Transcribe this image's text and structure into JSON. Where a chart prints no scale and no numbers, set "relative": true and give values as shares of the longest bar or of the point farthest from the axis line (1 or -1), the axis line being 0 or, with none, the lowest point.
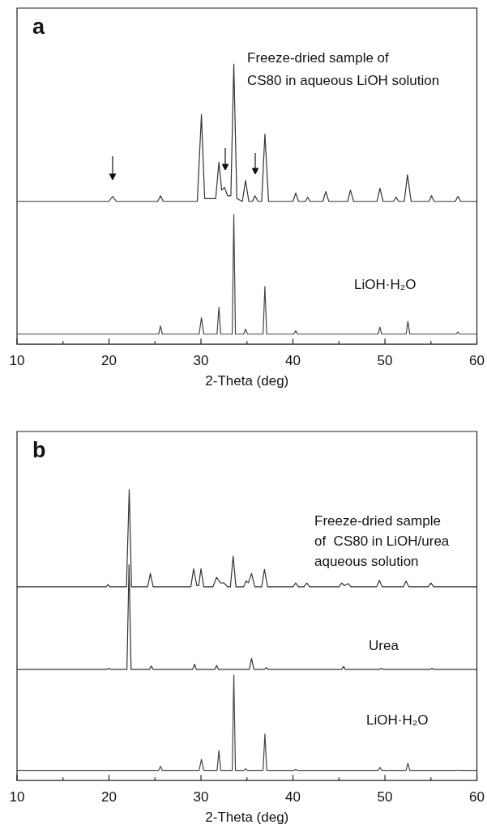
{
  "chart_data": [
    {
      "type": "line",
      "title": "a",
      "xlabel": "2-Theta (deg)",
      "xlim": [
        10,
        60
      ],
      "xticks": [
        10,
        {
          "value": 15,
          "label": null
        },
        20,
        {
          "value": 25,
          "label": null
        },
        30,
        {
          "value": 35,
          "label": null
        },
        40,
        {
          "value": 45,
          "label": null
        },
        50,
        {
          "value": 55,
          "label": null
        },
        60
      ],
      "relative": true,
      "marker": "none",
      "line_style": "solid",
      "legend": false,
      "series": [
        {
          "name": "Freeze-dried sample of\nCS80 in aqueous LiOH solution",
          "color": "#333333",
          "x": [
            10,
            20.0,
            20.4,
            20.8,
            25.3,
            25.6,
            25.9,
            29.6,
            30.05,
            30.4,
            31.6,
            31.95,
            32.25,
            32.56,
            32.9,
            33.25,
            33.57,
            33.9,
            34.5,
            34.85,
            35.2,
            35.6,
            35.87,
            36.2,
            36.6,
            36.95,
            37.35,
            40.0,
            40.3,
            40.6,
            41.35,
            41.6,
            41.85,
            43.25,
            43.57,
            43.9,
            45.95,
            46.25,
            46.6,
            49.15,
            49.45,
            49.8,
            50.95,
            51.2,
            51.5,
            52.1,
            52.45,
            52.85,
            54.8,
            55.06,
            55.35,
            57.65,
            57.94,
            58.25,
            60
          ],
          "values": [
            0.51,
            0.51,
            0.528,
            0.51,
            0.51,
            0.53,
            0.51,
            0.51,
            0.82,
            0.52,
            0.52,
            0.65,
            0.55,
            0.56,
            0.53,
            0.53,
            1,
            0.52,
            0.51,
            0.585,
            0.51,
            0.51,
            0.53,
            0.51,
            0.51,
            0.75,
            0.51,
            0.51,
            0.54,
            0.51,
            0.51,
            0.525,
            0.51,
            0.51,
            0.545,
            0.51,
            0.51,
            0.55,
            0.51,
            0.51,
            0.557,
            0.51,
            0.51,
            0.525,
            0.51,
            0.51,
            0.605,
            0.51,
            0.51,
            0.53,
            0.51,
            0.51,
            0.528,
            0.51,
            0.51
          ]
        },
        {
          "name": "LiOH·H₂O",
          "color": "#444444",
          "x": [
            10,
            25.4,
            25.6,
            25.8,
            29.8,
            30.05,
            30.3,
            31.75,
            31.95,
            32.15,
            33.4,
            33.57,
            33.75,
            34.65,
            34.85,
            35.05,
            36.75,
            36.95,
            37.15,
            40.1,
            40.3,
            40.5,
            49.25,
            49.45,
            49.65,
            52.3,
            52.5,
            52.7,
            57.75,
            57.94,
            58.1,
            60
          ],
          "values": [
            0.036,
            0.036,
            0.065,
            0.036,
            0.036,
            0.095,
            0.036,
            0.036,
            0.132,
            0.036,
            0.036,
            0.463,
            0.036,
            0.036,
            0.054,
            0.036,
            0.036,
            0.206,
            0.036,
            0.036,
            0.048,
            0.036,
            0.036,
            0.061,
            0.036,
            0.036,
            0.082,
            0.036,
            0.036,
            0.044,
            0.036,
            0.036
          ]
        }
      ]
    },
    {
      "type": "line",
      "title": "b",
      "xlabel": "2-Theta (deg)",
      "xlim": [
        10,
        60
      ],
      "xticks": [
        10,
        {
          "value": 15,
          "label": null
        },
        20,
        {
          "value": 25,
          "label": null
        },
        30,
        {
          "value": 35,
          "label": null
        },
        40,
        {
          "value": 45,
          "label": null
        },
        50,
        {
          "value": 55,
          "label": null
        },
        60
      ],
      "relative": true,
      "marker": "none",
      "line_style": "solid",
      "legend": false,
      "series": [
        {
          "name": "Freeze-dried sample\nof  CS80 in LiOH/urea\naqueous solution",
          "color": "#333333",
          "x": [
            10,
            19.7,
            19.9,
            20.1,
            21.9,
            22.2,
            22.45,
            24.2,
            24.5,
            24.8,
            28.9,
            29.2,
            29.55,
            29.75,
            30.0,
            30.3,
            31.3,
            31.7,
            32.1,
            32.5,
            32.9,
            33.2,
            33.5,
            33.8,
            34.65,
            34.9,
            35.15,
            35.5,
            35.85,
            36.6,
            36.9,
            37.25,
            40.0,
            40.3,
            40.6,
            41.2,
            41.5,
            41.8,
            45.0,
            45.3,
            45.6,
            46.0,
            46.3,
            49.1,
            49.4,
            49.7,
            52.0,
            52.3,
            52.6,
            54.7,
            55.0,
            55.3,
            60
          ],
          "values": [
            0.666,
            0.666,
            0.674,
            0.666,
            0.666,
            1,
            0.666,
            0.666,
            0.712,
            0.666,
            0.666,
            0.728,
            0.67,
            0.67,
            0.728,
            0.666,
            0.666,
            0.699,
            0.68,
            0.679,
            0.666,
            0.666,
            0.771,
            0.666,
            0.666,
            0.686,
            0.68,
            0.712,
            0.666,
            0.666,
            0.726,
            0.666,
            0.666,
            0.679,
            0.666,
            0.666,
            0.679,
            0.666,
            0.666,
            0.679,
            0.67,
            0.677,
            0.666,
            0.666,
            0.688,
            0.666,
            0.666,
            0.686,
            0.666,
            0.666,
            0.679,
            0.666,
            0.666
          ]
        },
        {
          "name": "Urea",
          "color": "#333333",
          "x": [
            10,
            19.75,
            19.97,
            20.2,
            21.95,
            22.18,
            22.4,
            24.4,
            24.6,
            24.8,
            29.1,
            29.3,
            29.5,
            31.5,
            31.7,
            31.9,
            35.25,
            35.5,
            35.75,
            36.9,
            37.1,
            37.3,
            45.3,
            45.5,
            45.7,
            49.4,
            49.6,
            49.8,
            54.9,
            55.1,
            55.3,
            60
          ],
          "values": [
            0.382,
            0.382,
            0.386,
            0.382,
            0.382,
            0.742,
            0.382,
            0.382,
            0.394,
            0.382,
            0.382,
            0.4,
            0.382,
            0.382,
            0.396,
            0.382,
            0.382,
            0.42,
            0.382,
            0.382,
            0.388,
            0.382,
            0.382,
            0.392,
            0.382,
            0.382,
            0.386,
            0.382,
            0.382,
            0.386,
            0.382,
            0.382
          ]
        },
        {
          "name": "LiOH·H₂O",
          "color": "#444444",
          "x": [
            10,
            25.4,
            25.6,
            25.8,
            29.8,
            30.05,
            30.3,
            31.75,
            31.95,
            32.15,
            33.4,
            33.57,
            33.75,
            34.65,
            34.85,
            35.05,
            36.75,
            36.95,
            37.15,
            40.1,
            40.3,
            40.5,
            49.25,
            49.45,
            49.65,
            52.3,
            52.5,
            52.7,
            57.75,
            57.94,
            58.1,
            60
          ],
          "values": [
            0.035,
            0.035,
            0.049,
            0.035,
            0.035,
            0.073,
            0.035,
            0.035,
            0.103,
            0.035,
            0.035,
            0.363,
            0.035,
            0.035,
            0.04,
            0.035,
            0.035,
            0.16,
            0.035,
            0.035,
            0.038,
            0.035,
            0.035,
            0.045,
            0.035,
            0.035,
            0.06,
            0.035,
            0.035,
            0.036,
            0.035,
            0.035
          ]
        }
      ]
    }
  ]
}
